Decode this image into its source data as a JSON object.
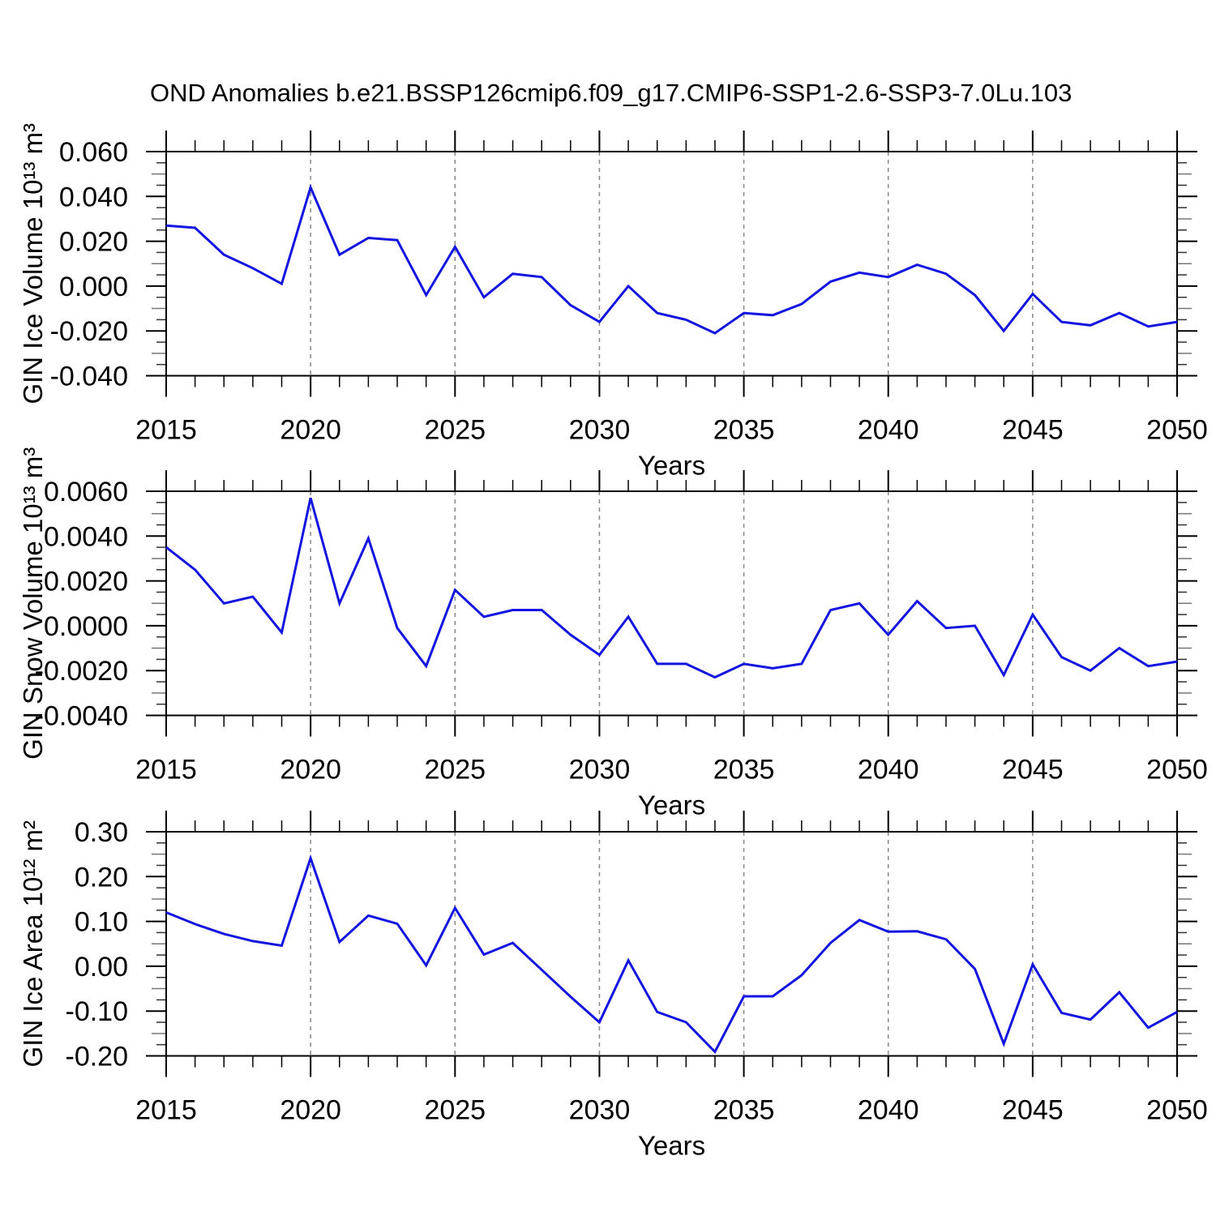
{
  "figure_title": "OND Anomalies b.e21.BSSP126cmip6.f09_g17.CMIP6-SSP1-2.6-SSP3-7.0Lu.103",
  "colors": {
    "line": "#1414e0",
    "grid": "#888888",
    "axis": "#000000"
  },
  "x_axis": {
    "label": "Years",
    "min": 2015,
    "max": 2050,
    "major_ticks": [
      2015,
      2020,
      2025,
      2030,
      2035,
      2040,
      2045,
      2050
    ],
    "major_tick_labels": [
      "2015",
      "2020",
      "2025",
      "2030",
      "2035",
      "2040",
      "2045",
      "2050"
    ],
    "minor_step_years": 1,
    "grid_years": [
      2020,
      2025,
      2030,
      2035,
      2040,
      2045
    ]
  },
  "years": [
    2015,
    2016,
    2017,
    2018,
    2019,
    2020,
    2021,
    2022,
    2023,
    2024,
    2025,
    2026,
    2027,
    2028,
    2029,
    2030,
    2031,
    2032,
    2033,
    2034,
    2035,
    2036,
    2037,
    2038,
    2039,
    2040,
    2041,
    2042,
    2043,
    2044,
    2045,
    2046,
    2047,
    2048,
    2049,
    2050
  ],
  "chart_data": [
    {
      "type": "line",
      "name": "gin-ice-volume",
      "ylabel": "GIN Ice Volume 10¹³ m³",
      "ylim": [
        -0.04,
        0.06
      ],
      "ytick_values": [
        0.06,
        0.04,
        0.02,
        0.0,
        -0.02,
        -0.04
      ],
      "ytick_labels": [
        "0.060",
        "0.040",
        "0.020",
        "0.000",
        "-0.020",
        "-0.040"
      ],
      "y_minor_step": 0.005,
      "values": [
        0.027,
        0.026,
        0.014,
        0.008,
        0.001,
        0.044,
        0.014,
        0.0215,
        0.0205,
        -0.004,
        0.0175,
        -0.005,
        0.0055,
        0.004,
        -0.0085,
        -0.016,
        0.0,
        -0.012,
        -0.015,
        -0.021,
        -0.012,
        -0.013,
        -0.008,
        0.002,
        0.006,
        0.004,
        0.0095,
        0.0055,
        -0.004,
        -0.02,
        -0.0035,
        -0.016,
        -0.0175,
        -0.012,
        -0.018,
        -0.016
      ]
    },
    {
      "type": "line",
      "name": "gin-snow-volume",
      "ylabel": "GIN Snow Volume 10¹³ m³",
      "ylim": [
        -0.004,
        0.006
      ],
      "ytick_values": [
        0.006,
        0.004,
        0.002,
        0.0,
        -0.002,
        -0.004
      ],
      "ytick_labels": [
        "0.0060",
        "0.0040",
        "0.0020",
        "0.0000",
        "-0.0020",
        "-0.0040"
      ],
      "y_minor_step": 0.0005,
      "values": [
        0.0035,
        0.0025,
        0.001,
        0.0013,
        -0.0003,
        0.0057,
        0.001,
        0.0039,
        -0.0001,
        -0.0018,
        0.0016,
        0.0004,
        0.0007,
        0.0007,
        -0.0004,
        -0.0013,
        0.0004,
        -0.0017,
        -0.0017,
        -0.0023,
        -0.0017,
        -0.0019,
        -0.0017,
        0.0007,
        0.001,
        -0.0004,
        0.0011,
        -0.0001,
        0.0,
        -0.0022,
        0.0005,
        -0.0014,
        -0.002,
        -0.001,
        -0.0018,
        -0.0016
      ]
    },
    {
      "type": "line",
      "name": "gin-ice-area",
      "ylabel": "GIN Ice Area 10¹² m²",
      "ylim": [
        -0.2,
        0.3
      ],
      "ytick_values": [
        0.3,
        0.2,
        0.1,
        0.0,
        -0.1,
        -0.2
      ],
      "ytick_labels": [
        "0.30",
        "0.20",
        "0.10",
        "0.00",
        "-0.10",
        "-0.20"
      ],
      "y_minor_step": 0.025,
      "values": [
        0.12,
        0.094,
        0.072,
        0.056,
        0.046,
        0.241,
        0.054,
        0.113,
        0.095,
        0.002,
        0.13,
        0.026,
        0.052,
        -0.008,
        -0.068,
        -0.125,
        0.013,
        -0.102,
        -0.125,
        -0.191,
        -0.067,
        -0.067,
        -0.02,
        0.052,
        0.103,
        0.077,
        0.078,
        0.06,
        -0.006,
        -0.173,
        0.004,
        -0.104,
        -0.119,
        -0.058,
        -0.137,
        -0.102
      ]
    }
  ]
}
